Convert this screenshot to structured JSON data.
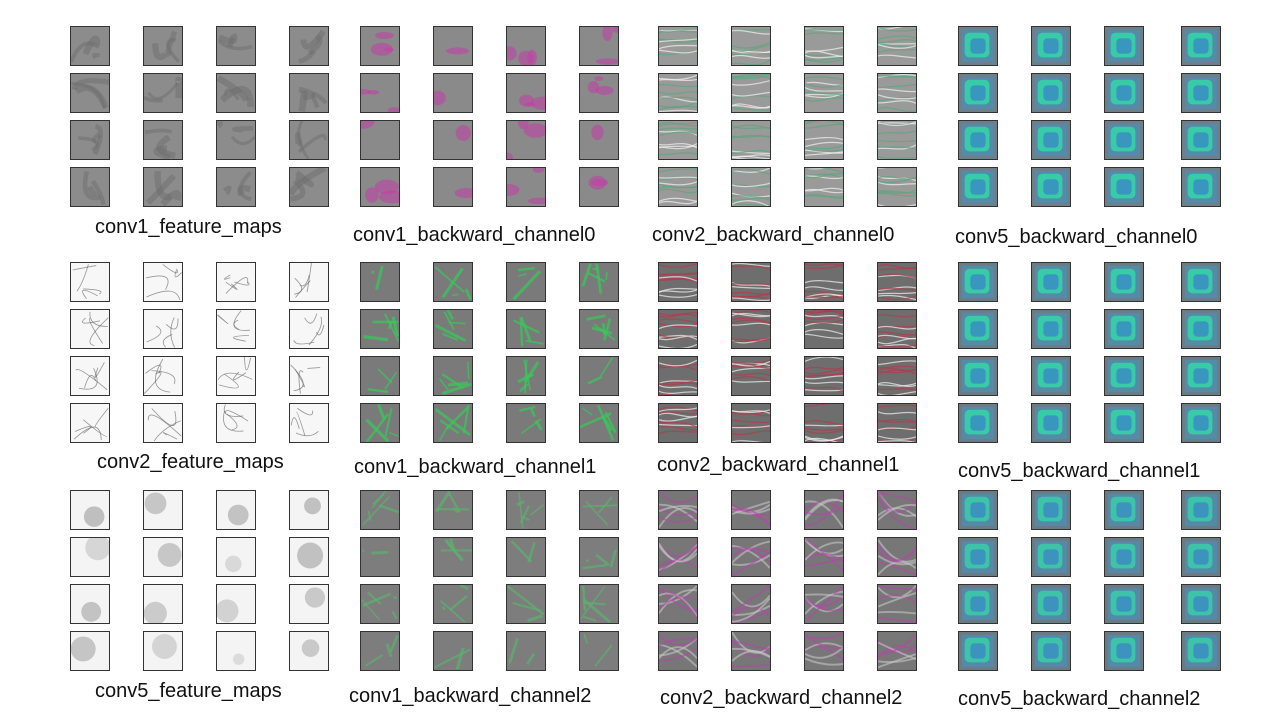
{
  "panels": [
    {
      "id": "p-r0-c0",
      "caption": "conv1_feature_maps",
      "style": "gray",
      "base": "#8c8c8c",
      "accent": "#6e6e6e"
    },
    {
      "id": "p-r0-c1",
      "caption": "conv1_backward_channel0",
      "style": "magenta",
      "base": "#8a8a8a",
      "accent": "#c23ea8"
    },
    {
      "id": "p-r0-c2",
      "caption": "conv2_backward_channel0",
      "style": "texture",
      "base": "#9a9a9a",
      "accent": "#5aa57a"
    },
    {
      "id": "p-r0-c3",
      "caption": "conv5_backward_channel0",
      "style": "teal",
      "base": "#6f7f88",
      "accent": "#2fe0a8"
    },
    {
      "id": "p-r1-c0",
      "caption": "conv2_feature_maps",
      "style": "white-edges",
      "base": "#f7f7f7",
      "accent": "#5a5a5a"
    },
    {
      "id": "p-r1-c1",
      "caption": "conv1_backward_channel1",
      "style": "green",
      "base": "#7a7a7a",
      "accent": "#37c95a"
    },
    {
      "id": "p-r1-c2",
      "caption": "conv2_backward_channel1",
      "style": "texture-red",
      "base": "#6e6e6e",
      "accent": "#b03a4a"
    },
    {
      "id": "p-r1-c3",
      "caption": "conv5_backward_channel1",
      "style": "teal",
      "base": "#6c7c84",
      "accent": "#2fe0a8"
    },
    {
      "id": "p-r2-c0",
      "caption": "conv5_feature_maps",
      "style": "blur",
      "base": "#f4f4f4",
      "accent": "#9a9a9a"
    },
    {
      "id": "p-r2-c1",
      "caption": "conv1_backward_channel2",
      "style": "green-soft",
      "base": "#7d7d7d",
      "accent": "#5db06e"
    },
    {
      "id": "p-r2-c2",
      "caption": "conv2_backward_channel2",
      "style": "purple",
      "base": "#777777",
      "accent": "#b04aa8"
    },
    {
      "id": "p-r2-c3",
      "caption": "conv5_backward_channel2",
      "style": "teal",
      "base": "#6c7a82",
      "accent": "#36d6a8"
    }
  ]
}
